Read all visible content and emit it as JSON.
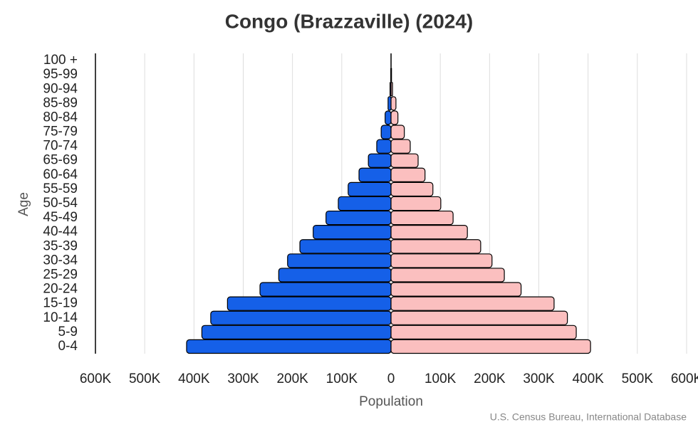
{
  "chart_data": {
    "type": "pyramid",
    "title": "Congo (Brazzaville) (2024)",
    "x_label": "Population",
    "y_label": "Age",
    "source": "U.S. Census Bureau, International Database",
    "categories": [
      "0-4",
      "5-9",
      "10-14",
      "15-19",
      "20-24",
      "25-29",
      "30-34",
      "35-39",
      "40-44",
      "45-49",
      "50-54",
      "55-59",
      "60-64",
      "65-69",
      "70-74",
      "75-79",
      "80-84",
      "85-89",
      "90-94",
      "95-99",
      "100 +"
    ],
    "series": [
      {
        "color": "#1560e8",
        "values": [
          415000,
          384000,
          366000,
          332000,
          266000,
          228000,
          210000,
          185000,
          158000,
          132000,
          107000,
          87000,
          65000,
          46000,
          29000,
          20000,
          12000,
          6000,
          2000,
          500,
          100
        ]
      },
      {
        "color": "#fbbfbf",
        "values": [
          405000,
          376000,
          358000,
          331000,
          264000,
          230000,
          205000,
          182000,
          155000,
          126000,
          101000,
          85000,
          69000,
          55000,
          39000,
          27000,
          14000,
          10000,
          3000,
          1000,
          200
        ]
      }
    ],
    "xlim": [
      -600000,
      600000
    ],
    "xticks": [
      {
        "value": -600000,
        "label": "600K"
      },
      {
        "value": -500000,
        "label": "500K"
      },
      {
        "value": -400000,
        "label": "400K"
      },
      {
        "value": -300000,
        "label": "300K"
      },
      {
        "value": -200000,
        "label": "200K"
      },
      {
        "value": -100000,
        "label": "100K"
      },
      0,
      {
        "value": 100000,
        "label": "100K"
      },
      {
        "value": 200000,
        "label": "200K"
      },
      {
        "value": 300000,
        "label": "300K"
      },
      {
        "value": 400000,
        "label": "400K"
      },
      {
        "value": 500000,
        "label": "500K"
      },
      {
        "value": 600000,
        "label": "600K"
      }
    ],
    "grid": true
  }
}
